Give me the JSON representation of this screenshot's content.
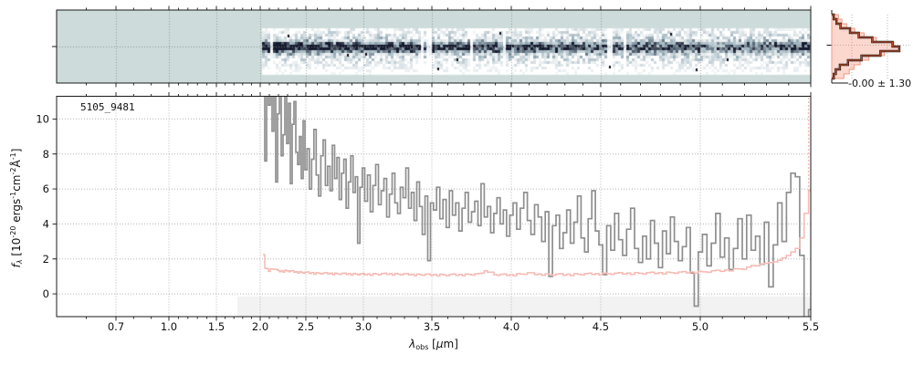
{
  "labels": {
    "source_id": "5105_9481",
    "noise_stats": "-0.00 ± 1.30",
    "xlabel_text": "λobs [μm]",
    "ylabel_text": "fλ [10⁻²⁰ ergs⁻¹cm⁻²Å⁻¹]",
    "xlabel_tokens": [
      {
        "text": "λ",
        "italic": true
      },
      {
        "text": "obs",
        "sub": true
      },
      {
        "text": " ["
      },
      {
        "text": "μ",
        "italic": true
      },
      {
        "text": "m]"
      }
    ],
    "ylabel_tokens": [
      {
        "text": "f",
        "italic": true
      },
      {
        "text": "λ",
        "sub": true,
        "italic": true
      },
      {
        "text": " [10"
      },
      {
        "text": "-20",
        "sup": true
      },
      {
        "text": " ergs"
      },
      {
        "text": "-1",
        "sup": true
      },
      {
        "text": "cm"
      },
      {
        "text": "-2",
        "sup": true
      },
      {
        "text": "Å"
      },
      {
        "text": "-1",
        "sup": true
      },
      {
        "text": "]"
      }
    ]
  },
  "style": {
    "flux_color": "#8f8f8f",
    "error_color": "#f5b9b2",
    "grid_color": "#b5b5b5",
    "spine_color": "#1a1a1a",
    "shaded_band_color": "#f2f2f2",
    "spec2d_background": "#cddcda",
    "spec2d_dark": "#161a2e",
    "spec2d_mid": "#9eb3bd",
    "hist_fill": "rgba(240,112,80,0.28)",
    "hist_fill_edge": "#ef9a82",
    "hist_step_black": "#151515",
    "hist_step_red": "#b34a2c",
    "tick_label_color": "#111111"
  },
  "chart_data": [
    {
      "id": "spec1d",
      "type": "line",
      "title": "5105_9481",
      "xlabel": "λ_obs [μm]",
      "ylabel": "f_λ [10^-20 ergs^-1 cm^-2 Å^-1]",
      "ylim": [
        -1.3,
        11.3
      ],
      "y_ticks": [
        "0",
        "2",
        "4",
        "6",
        "8",
        "10"
      ],
      "y_tick_values": [
        0,
        2,
        4,
        6,
        8,
        10
      ],
      "x_ticks": [
        "0.7",
        "1.0",
        "1.5",
        "2.0",
        "2.5",
        "3.0",
        "3.5",
        "4.0",
        "4.5",
        "5.0",
        "5.5"
      ],
      "x_tick_values": [
        0.7,
        1.0,
        1.5,
        2.0,
        2.5,
        3.0,
        3.5,
        4.0,
        4.5,
        5.0,
        5.5
      ],
      "x_axis_map": {
        "wavelengths": [
          0.5,
          0.7,
          1.0,
          1.5,
          2.0,
          2.5,
          3.0,
          3.5,
          4.0,
          4.5,
          5.0,
          5.5
        ],
        "fractions": [
          0.0,
          0.0787,
          0.1489,
          0.2119,
          0.27,
          0.3305,
          0.4068,
          0.4976,
          0.6029,
          0.7215,
          0.8535,
          1.0
        ]
      },
      "grid": "dotted",
      "shaded_region": {
        "x_start": 1.74,
        "x_end": 5.5,
        "y_top": -0.15,
        "y_bottom": -1.3
      },
      "series": [
        {
          "name": "flux",
          "x_start": 2.04,
          "x_step": 0.02,
          "values": [
            11.6,
            7.6,
            11.9,
            10.8,
            12.0,
            9.3,
            11.5,
            6.4,
            10.3,
            11.8,
            7.9,
            9.1,
            11.3,
            8.6,
            10.9,
            6.3,
            9.7,
            11.0,
            8.1,
            7.4,
            9.0,
            6.6,
            9.9,
            7.1,
            8.3,
            6.0,
            7.7,
            9.4,
            6.8,
            5.6,
            7.9,
            8.8,
            6.2,
            7.3,
            5.9,
            8.5,
            6.6,
            7.8,
            5.4,
            6.9,
            7.7,
            4.9,
            6.4,
            7.9,
            5.8,
            6.7,
            2.9,
            6.1,
            7.2,
            5.3,
            6.8,
            4.7,
            6.2,
            7.4,
            5.1,
            5.9,
            6.6,
            4.4,
            5.7,
            6.9,
            5.2,
            4.6,
            6.1,
            5.5,
            7.2,
            4.9,
            5.8,
            4.2,
            6.4,
            5.0,
            3.4,
            5.6,
            1.9,
            5.2,
            4.8,
            6.1,
            4.3,
            5.4,
            3.8,
            5.9,
            4.5,
            5.2,
            3.6,
            4.9,
            5.8,
            4.1,
            4.7,
            5.3,
            3.9,
            6.3,
            4.4,
            5.0,
            3.5,
            4.6,
            5.5,
            4.0,
            4.8,
            3.3,
            4.5,
            5.2,
            3.7,
            4.9,
            5.8,
            4.2,
            3.4,
            5.1,
            4.4,
            3.0,
            4.7,
            1.0,
            3.9,
            4.5,
            2.6,
            3.5,
            4.8,
            2.9,
            4.1,
            5.6,
            3.2,
            2.4,
            4.3,
            5.9,
            3.6,
            2.8,
            1.1,
            3.9,
            2.5,
            4.6,
            3.1,
            2.2,
            3.7,
            4.9,
            2.6,
            1.8,
            3.3,
            2.0,
            4.2,
            2.9,
            1.5,
            3.6,
            2.3,
            4.4,
            3.0,
            1.9,
            2.7,
            3.8,
            1.2,
            -0.7,
            2.4,
            3.4,
            1.6,
            2.9,
            4.6,
            2.1,
            3.2,
            1.4,
            2.6,
            4.3,
            2.0,
            4.5,
            2.5,
            3.3,
            1.7,
            4.1,
            0.4,
            2.8,
            5.2,
            3.0,
            5.8,
            6.9,
            6.7,
            2.2,
            -1.5,
            -0.9
          ]
        },
        {
          "name": "error",
          "control_points": [
            [
              2.04,
              2.2
            ],
            [
              2.06,
              1.5
            ],
            [
              2.1,
              1.35
            ],
            [
              2.16,
              1.45
            ],
            [
              2.2,
              1.3
            ],
            [
              2.3,
              1.32
            ],
            [
              2.4,
              1.25
            ],
            [
              2.6,
              1.18
            ],
            [
              2.8,
              1.15
            ],
            [
              3.0,
              1.12
            ],
            [
              3.2,
              1.14
            ],
            [
              3.4,
              1.1
            ],
            [
              3.6,
              1.08
            ],
            [
              3.8,
              1.12
            ],
            [
              3.85,
              1.35
            ],
            [
              3.9,
              1.1
            ],
            [
              4.0,
              1.08
            ],
            [
              4.1,
              1.18
            ],
            [
              4.15,
              1.12
            ],
            [
              4.3,
              1.1
            ],
            [
              4.5,
              1.15
            ],
            [
              4.7,
              1.18
            ],
            [
              4.9,
              1.22
            ],
            [
              5.0,
              1.25
            ],
            [
              5.1,
              1.32
            ],
            [
              5.2,
              1.45
            ],
            [
              5.3,
              1.75
            ],
            [
              5.35,
              1.85
            ],
            [
              5.4,
              2.2
            ],
            [
              5.44,
              2.6
            ],
            [
              5.46,
              3.2
            ],
            [
              5.48,
              4.6
            ],
            [
              5.49,
              5.9
            ]
          ],
          "wiggle": [
            0.05,
            -0.03,
            0.02,
            -0.06,
            0.04,
            0.0,
            -0.04,
            0.03
          ],
          "offscale_spike_x": 5.49
        }
      ]
    },
    {
      "id": "spec2d",
      "type": "heatmap",
      "description": "2D drizzled spectrum cutout; signal band from 2.02 to 5.5 μm, dark trace at center row",
      "band_wavelength_start": 2.02,
      "band_wavelength_end": 5.5,
      "trace_center_row_fraction": 0.5,
      "x_axis_same_as": "spec1d"
    },
    {
      "id": "noise_histogram",
      "type": "bar",
      "orientation": "horizontal",
      "annotation": "-0.00 ± 1.30",
      "bins_top_to_bottom": 14,
      "outer_widths": [
        0.1,
        0.15,
        0.22,
        0.34,
        0.48,
        0.66,
        0.92,
        1.0,
        0.78,
        0.55,
        0.42,
        0.33,
        0.26,
        0.18
      ],
      "inner_widths": [
        0.03,
        0.07,
        0.13,
        0.27,
        0.4,
        0.6,
        0.9,
        1.0,
        0.72,
        0.44,
        0.24,
        0.12,
        0.06,
        0.03
      ]
    }
  ]
}
